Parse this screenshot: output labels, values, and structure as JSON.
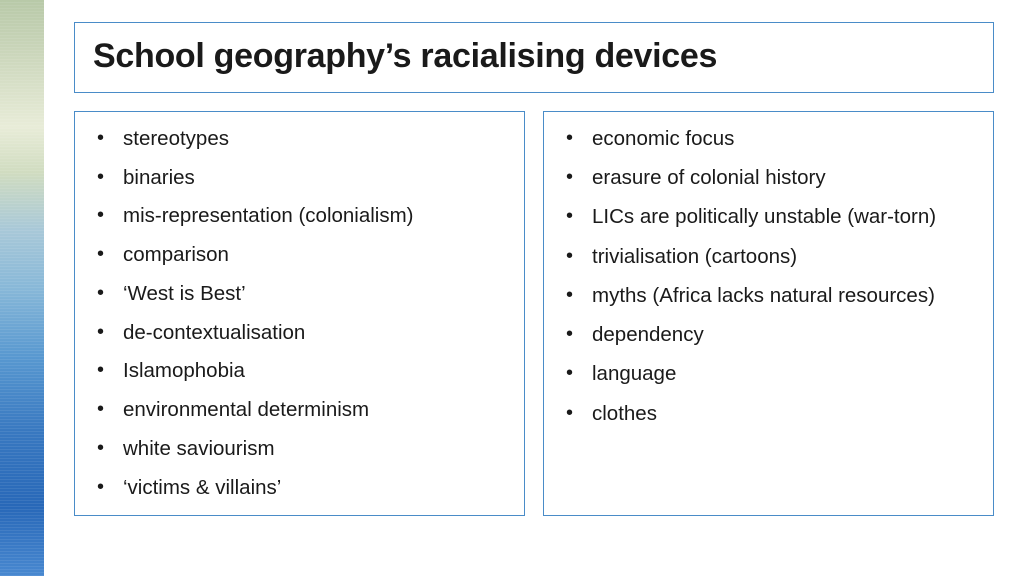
{
  "title": "School geography’s racialising devices",
  "border_color": "#4a8cc8",
  "background_color": "#ffffff",
  "text_color": "#1a1a1a",
  "title_fontsize": 34,
  "item_fontsize": 20.5,
  "sidebar_gradient": [
    "#b8c9a8",
    "#c8d4b8",
    "#d8e0c8",
    "#e8ecd8",
    "#d0dcc0",
    "#a8c8d8",
    "#88b8d8",
    "#5898d0",
    "#3878c0",
    "#2868b8",
    "#4888d0"
  ],
  "left_items": [
    "stereotypes",
    "binaries",
    "mis-representation (colonialism)",
    "comparison",
    "‘West is Best’",
    "de-contextualisation",
    "Islamophobia",
    "environmental determinism",
    "white saviourism",
    "‘victims & villains’"
  ],
  "right_items": [
    "economic focus",
    "erasure of colonial history",
    "LICs are politically unstable (war-torn)",
    "trivialisation (cartoons)",
    "myths (Africa lacks natural resources)",
    "dependency",
    "language",
    "clothes"
  ]
}
